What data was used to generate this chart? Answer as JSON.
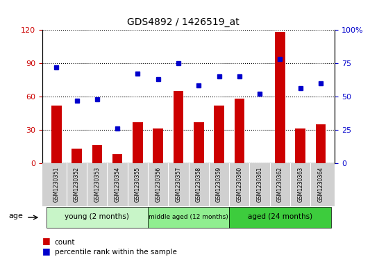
{
  "title": "GDS4892 / 1426519_at",
  "samples": [
    "GSM1230351",
    "GSM1230352",
    "GSM1230353",
    "GSM1230354",
    "GSM1230355",
    "GSM1230356",
    "GSM1230357",
    "GSM1230358",
    "GSM1230359",
    "GSM1230360",
    "GSM1230361",
    "GSM1230362",
    "GSM1230363",
    "GSM1230364"
  ],
  "counts": [
    52,
    13,
    16,
    8,
    37,
    31,
    65,
    37,
    52,
    58,
    0,
    118,
    31,
    35
  ],
  "percentiles": [
    72,
    47,
    48,
    26,
    67,
    63,
    75,
    58,
    65,
    65,
    52,
    78,
    56,
    60
  ],
  "bar_color": "#cc0000",
  "dot_color": "#0000cc",
  "left_ylim": [
    0,
    120
  ],
  "right_ylim": [
    0,
    100
  ],
  "left_yticks": [
    0,
    30,
    60,
    90,
    120
  ],
  "right_yticks": [
    0,
    25,
    50,
    75,
    100
  ],
  "right_yticklabels": [
    "0",
    "25",
    "50",
    "75",
    "100%"
  ],
  "groups": [
    {
      "label": "young (2 months)",
      "start": 0,
      "end": 4,
      "color": "#c8f5c8"
    },
    {
      "label": "middle aged (12 months)",
      "start": 5,
      "end": 8,
      "color": "#90ee90"
    },
    {
      "label": "aged (24 months)",
      "start": 9,
      "end": 13,
      "color": "#3dcc3d"
    }
  ],
  "tick_area_color": "#d0d0d0",
  "legend_bar_label": "count",
  "legend_dot_label": "percentile rank within the sample"
}
